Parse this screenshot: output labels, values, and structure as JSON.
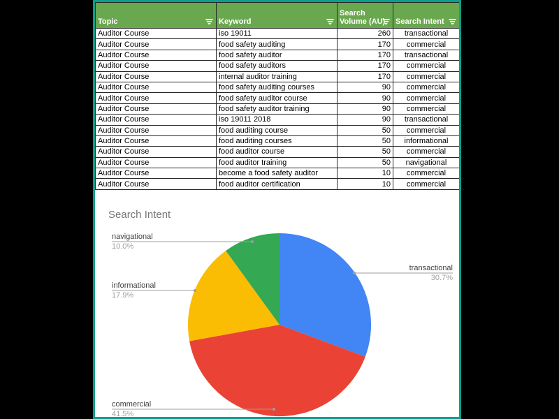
{
  "page": {
    "background": "#000000",
    "content_border_color": "#0b9e8c"
  },
  "table": {
    "header_bg": "#6aa84f",
    "header_text_color": "#ffffff",
    "grid_color": "#262626",
    "columns": [
      {
        "label": "Topic",
        "align": "left"
      },
      {
        "label": "Keyword",
        "align": "left"
      },
      {
        "label": "Search Volume (AU)",
        "align": "right"
      },
      {
        "label": "Search Intent",
        "align": "center"
      }
    ],
    "filter_icon": "filter-funnel",
    "rows": [
      {
        "topic": "Auditor Course",
        "keyword": "iso 19011",
        "volume": "260",
        "intent": "transactional"
      },
      {
        "topic": "Auditor Course",
        "keyword": "food safety auditing",
        "volume": "170",
        "intent": "commercial"
      },
      {
        "topic": "Auditor Course",
        "keyword": "food safety auditor",
        "volume": "170",
        "intent": "transactional"
      },
      {
        "topic": "Auditor Course",
        "keyword": "food safety auditors",
        "volume": "170",
        "intent": "commercial"
      },
      {
        "topic": "Auditor Course",
        "keyword": "internal auditor training",
        "volume": "170",
        "intent": "commercial"
      },
      {
        "topic": "Auditor Course",
        "keyword": "food safety auditing courses",
        "volume": "90",
        "intent": "commercial"
      },
      {
        "topic": "Auditor Course",
        "keyword": "food safety auditor course",
        "volume": "90",
        "intent": "commercial"
      },
      {
        "topic": "Auditor Course",
        "keyword": "food safety auditor training",
        "volume": "90",
        "intent": "commercial"
      },
      {
        "topic": "Auditor Course",
        "keyword": "iso 19011 2018",
        "volume": "90",
        "intent": "transactional"
      },
      {
        "topic": "Auditor Course",
        "keyword": "food auditing course",
        "volume": "50",
        "intent": "commercial"
      },
      {
        "topic": "Auditor Course",
        "keyword": "food auditing courses",
        "volume": "50",
        "intent": "informational"
      },
      {
        "topic": "Auditor Course",
        "keyword": "food auditor course",
        "volume": "50",
        "intent": "commercial"
      },
      {
        "topic": "Auditor Course",
        "keyword": "food auditor training",
        "volume": "50",
        "intent": "navigational"
      },
      {
        "topic": "Auditor Course",
        "keyword": "become a food safety auditor",
        "volume": "10",
        "intent": "commercial"
      },
      {
        "topic": "Auditor Course",
        "keyword": "food auditor certification",
        "volume": "10",
        "intent": "commercial"
      }
    ]
  },
  "chart_data": {
    "type": "pie",
    "title": "Search Intent",
    "title_color": "#757575",
    "categories": [
      "transactional",
      "commercial",
      "informational",
      "navigational"
    ],
    "values": [
      30.7,
      41.5,
      17.9,
      10.0
    ],
    "value_labels": [
      "30.7%",
      "41.5%",
      "17.9%",
      "10.0%"
    ],
    "colors": [
      "#4285f4",
      "#ea4335",
      "#fbbc04",
      "#34a853"
    ],
    "start_angle": "12-oclock",
    "direction": "clockwise",
    "legend_position": "outside-callout-labels",
    "leader_line_color": "#9e9e9e"
  }
}
